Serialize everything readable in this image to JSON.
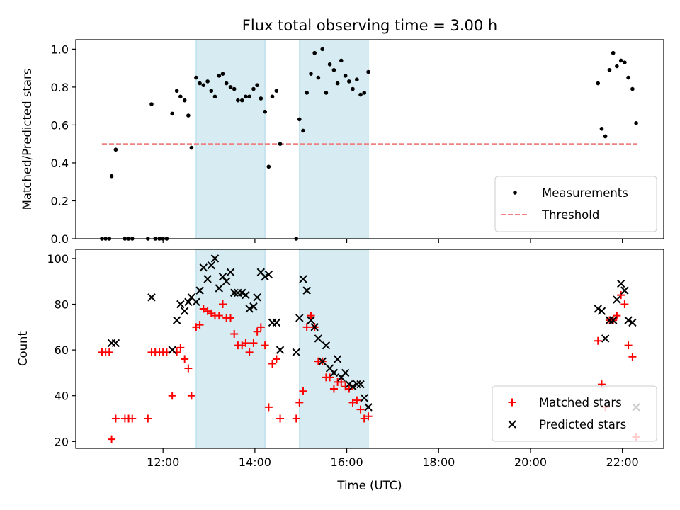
{
  "chart_data": [
    {
      "type": "scatter",
      "title": "Flux total observing time = 3.00 h",
      "ylabel": "Matched/Predicted stars",
      "xlabel": "",
      "x_unit": "hours UTC",
      "xlim": [
        10.1,
        22.9
      ],
      "ylim": [
        0,
        1.05
      ],
      "yticks": [
        0.0,
        0.2,
        0.4,
        0.6,
        0.8,
        1.0
      ],
      "ytick_labels": [
        "0.0",
        "0.2",
        "0.4",
        "0.6",
        "0.8",
        "1.0"
      ],
      "grid": false,
      "legend_position": "bottom-right",
      "highlight_bands": [
        [
          12.72,
          14.22
        ],
        [
          14.97,
          16.47
        ]
      ],
      "threshold": {
        "name": "Threshold",
        "y": 0.5,
        "x_range": [
          10.67,
          22.33
        ],
        "color": "#f08080"
      },
      "series": [
        {
          "name": "Measurements",
          "color": "#000000",
          "points": [
            [
              10.67,
              0
            ],
            [
              10.75,
              0
            ],
            [
              10.83,
              0
            ],
            [
              10.88,
              0.33
            ],
            [
              10.97,
              0.47
            ],
            [
              11.17,
              0
            ],
            [
              11.25,
              0
            ],
            [
              11.33,
              0
            ],
            [
              11.67,
              0
            ],
            [
              11.75,
              0.71
            ],
            [
              11.83,
              0
            ],
            [
              11.92,
              0
            ],
            [
              12.0,
              0
            ],
            [
              12.08,
              0
            ],
            [
              12.2,
              0.66
            ],
            [
              12.3,
              0.78
            ],
            [
              12.38,
              0.75
            ],
            [
              12.47,
              0.73
            ],
            [
              12.55,
              0.65
            ],
            [
              12.62,
              0.48
            ],
            [
              12.72,
              0.85
            ],
            [
              12.8,
              0.82
            ],
            [
              12.88,
              0.81
            ],
            [
              12.97,
              0.83
            ],
            [
              13.05,
              0.78
            ],
            [
              13.13,
              0.75
            ],
            [
              13.22,
              0.86
            ],
            [
              13.3,
              0.87
            ],
            [
              13.38,
              0.82
            ],
            [
              13.47,
              0.8
            ],
            [
              13.55,
              0.79
            ],
            [
              13.63,
              0.73
            ],
            [
              13.72,
              0.73
            ],
            [
              13.8,
              0.75
            ],
            [
              13.88,
              0.75
            ],
            [
              13.97,
              0.79
            ],
            [
              14.05,
              0.81
            ],
            [
              14.13,
              0.74
            ],
            [
              14.22,
              0.67
            ],
            [
              14.3,
              0.38
            ],
            [
              14.38,
              0.75
            ],
            [
              14.47,
              0.78
            ],
            [
              14.55,
              0.5
            ],
            [
              14.9,
              0
            ],
            [
              14.97,
              0.63
            ],
            [
              15.05,
              0.57
            ],
            [
              15.13,
              0.77
            ],
            [
              15.22,
              0.87
            ],
            [
              15.3,
              0.98
            ],
            [
              15.38,
              0.85
            ],
            [
              15.47,
              1.0
            ],
            [
              15.55,
              0.77
            ],
            [
              15.63,
              0.92
            ],
            [
              15.72,
              0.89
            ],
            [
              15.8,
              0.82
            ],
            [
              15.88,
              0.94
            ],
            [
              15.97,
              0.86
            ],
            [
              16.05,
              0.83
            ],
            [
              16.13,
              0.79
            ],
            [
              16.22,
              0.84
            ],
            [
              16.3,
              0.76
            ],
            [
              16.38,
              0.77
            ],
            [
              16.47,
              0.88
            ],
            [
              21.47,
              0.82
            ],
            [
              21.55,
              0.58
            ],
            [
              21.63,
              0.54
            ],
            [
              21.72,
              0.89
            ],
            [
              21.8,
              0.98
            ],
            [
              21.88,
              0.91
            ],
            [
              21.97,
              0.94
            ],
            [
              22.05,
              0.93
            ],
            [
              22.13,
              0.85
            ],
            [
              22.22,
              0.79
            ],
            [
              22.3,
              0.61
            ]
          ]
        }
      ]
    },
    {
      "type": "scatter",
      "title": "",
      "ylabel": "Count",
      "xlabel": "Time (UTC)",
      "x_unit": "hours UTC",
      "xlim": [
        10.1,
        22.9
      ],
      "ylim": [
        17,
        104
      ],
      "yticks": [
        20,
        40,
        60,
        80,
        100
      ],
      "ytick_labels": [
        "20",
        "40",
        "60",
        "80",
        "100"
      ],
      "xticks": [
        12,
        14,
        16,
        18,
        20,
        22
      ],
      "xtick_labels": [
        "12:00",
        "14:00",
        "16:00",
        "18:00",
        "20:00",
        "22:00"
      ],
      "grid": false,
      "legend_position": "bottom-right",
      "highlight_bands": [
        [
          12.72,
          14.22
        ],
        [
          14.97,
          16.47
        ]
      ],
      "series": [
        {
          "name": "Matched stars",
          "marker": "plus",
          "color": "#ff0000",
          "points": [
            [
              10.67,
              59
            ],
            [
              10.75,
              59
            ],
            [
              10.83,
              59
            ],
            [
              10.88,
              21
            ],
            [
              10.97,
              30
            ],
            [
              11.17,
              30
            ],
            [
              11.25,
              30
            ],
            [
              11.33,
              30
            ],
            [
              11.67,
              30
            ],
            [
              11.75,
              59
            ],
            [
              11.83,
              59
            ],
            [
              11.92,
              59
            ],
            [
              12.0,
              59
            ],
            [
              12.08,
              59
            ],
            [
              12.2,
              40
            ],
            [
              12.3,
              59
            ],
            [
              12.38,
              61
            ],
            [
              12.47,
              56
            ],
            [
              12.55,
              52
            ],
            [
              12.62,
              40
            ],
            [
              12.72,
              70
            ],
            [
              12.8,
              71
            ],
            [
              12.88,
              78
            ],
            [
              12.97,
              77
            ],
            [
              13.05,
              76
            ],
            [
              13.13,
              75
            ],
            [
              13.22,
              75
            ],
            [
              13.3,
              80
            ],
            [
              13.38,
              74
            ],
            [
              13.47,
              74
            ],
            [
              13.55,
              67
            ],
            [
              13.63,
              62
            ],
            [
              13.72,
              62
            ],
            [
              13.8,
              63
            ],
            [
              13.88,
              59
            ],
            [
              13.97,
              63
            ],
            [
              14.05,
              68
            ],
            [
              14.13,
              70
            ],
            [
              14.22,
              62
            ],
            [
              14.3,
              35
            ],
            [
              14.38,
              54
            ],
            [
              14.47,
              56
            ],
            [
              14.55,
              30
            ],
            [
              14.9,
              30
            ],
            [
              14.97,
              37
            ],
            [
              15.05,
              42
            ],
            [
              15.13,
              70
            ],
            [
              15.22,
              75
            ],
            [
              15.3,
              70
            ],
            [
              15.38,
              55
            ],
            [
              15.47,
              55
            ],
            [
              15.55,
              48
            ],
            [
              15.63,
              48
            ],
            [
              15.72,
              43
            ],
            [
              15.8,
              46
            ],
            [
              15.88,
              46
            ],
            [
              15.97,
              44
            ],
            [
              16.05,
              43
            ],
            [
              16.13,
              37
            ],
            [
              16.22,
              38
            ],
            [
              16.3,
              34
            ],
            [
              16.38,
              30
            ],
            [
              16.47,
              31
            ],
            [
              21.47,
              64
            ],
            [
              21.55,
              45
            ],
            [
              21.63,
              35
            ],
            [
              21.72,
              73
            ],
            [
              21.8,
              73
            ],
            [
              21.88,
              75
            ],
            [
              21.97,
              84
            ],
            [
              22.05,
              80
            ],
            [
              22.13,
              62
            ],
            [
              22.22,
              57
            ],
            [
              22.3,
              22
            ]
          ]
        },
        {
          "name": "Predicted stars",
          "marker": "x",
          "color": "#000000",
          "points": [
            [
              10.88,
              63
            ],
            [
              10.97,
              63
            ],
            [
              11.75,
              83
            ],
            [
              12.2,
              60
            ],
            [
              12.3,
              73
            ],
            [
              12.38,
              80
            ],
            [
              12.47,
              77
            ],
            [
              12.55,
              81
            ],
            [
              12.62,
              83
            ],
            [
              12.72,
              81
            ],
            [
              12.8,
              86
            ],
            [
              12.88,
              96
            ],
            [
              12.97,
              91
            ],
            [
              13.05,
              97
            ],
            [
              13.13,
              100
            ],
            [
              13.22,
              87
            ],
            [
              13.3,
              92
            ],
            [
              13.38,
              90
            ],
            [
              13.47,
              94
            ],
            [
              13.55,
              85
            ],
            [
              13.63,
              85
            ],
            [
              13.72,
              85
            ],
            [
              13.8,
              84
            ],
            [
              13.88,
              78
            ],
            [
              13.97,
              79
            ],
            [
              14.05,
              83
            ],
            [
              14.13,
              94
            ],
            [
              14.22,
              92
            ],
            [
              14.3,
              93
            ],
            [
              14.38,
              72
            ],
            [
              14.47,
              72
            ],
            [
              14.55,
              60
            ],
            [
              14.9,
              59
            ],
            [
              14.97,
              74
            ],
            [
              15.05,
              91
            ],
            [
              15.13,
              86
            ],
            [
              15.22,
              73
            ],
            [
              15.3,
              70
            ],
            [
              15.38,
              65
            ],
            [
              15.47,
              55
            ],
            [
              15.55,
              62
            ],
            [
              15.63,
              52
            ],
            [
              15.72,
              50
            ],
            [
              15.8,
              56
            ],
            [
              15.88,
              48
            ],
            [
              15.97,
              50
            ],
            [
              16.05,
              45
            ],
            [
              16.13,
              44
            ],
            [
              16.22,
              45
            ],
            [
              16.3,
              45
            ],
            [
              16.38,
              39
            ],
            [
              16.47,
              35
            ],
            [
              21.47,
              78
            ],
            [
              21.55,
              77
            ],
            [
              21.63,
              65
            ],
            [
              21.72,
              73
            ],
            [
              21.8,
              73
            ],
            [
              21.88,
              82
            ],
            [
              21.97,
              89
            ],
            [
              22.05,
              86
            ],
            [
              22.13,
              73
            ],
            [
              22.22,
              72
            ],
            [
              22.3,
              35
            ]
          ]
        }
      ]
    }
  ]
}
